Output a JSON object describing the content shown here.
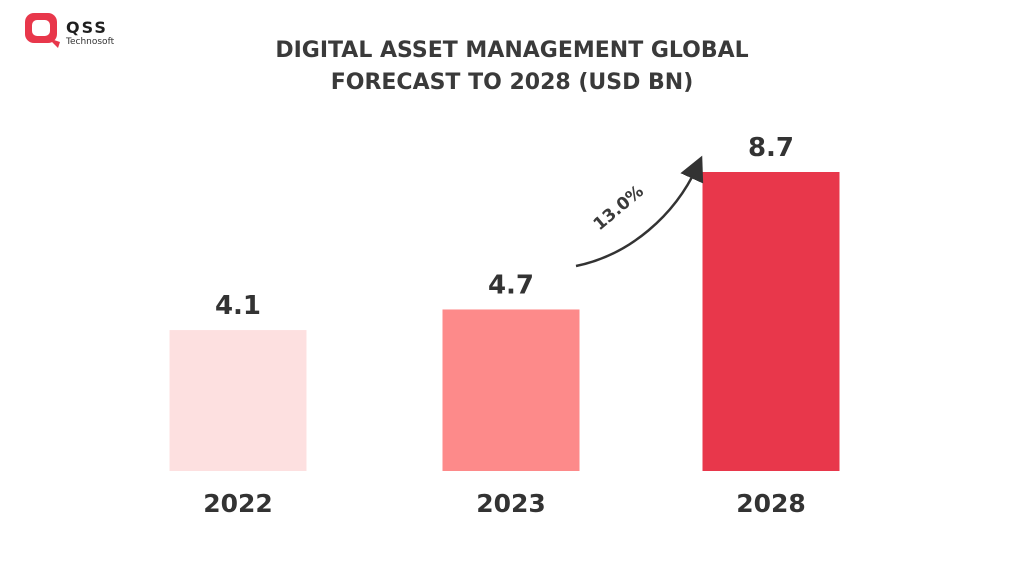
{
  "brand": {
    "name": "QSS",
    "tagline": "Technosoft",
    "color": "#e8374b"
  },
  "chart_data": {
    "type": "bar",
    "title_lines": [
      "DIGITAL ASSET MANAGEMENT GLOBAL",
      "FORECAST TO 2028 (USD BN)"
    ],
    "categories": [
      "2022",
      "2023",
      "2028"
    ],
    "values": [
      4.1,
      4.7,
      8.7
    ],
    "value_labels": [
      "4.1",
      "4.7",
      "8.7"
    ],
    "bar_colors": [
      "#fde0e0",
      "#fd8a8a",
      "#e8374b"
    ],
    "annotation": {
      "label": "13.0%",
      "from": "2023",
      "to": "2028"
    },
    "xlabel": "",
    "ylabel": "",
    "ylim": [
      0,
      8.7
    ]
  }
}
